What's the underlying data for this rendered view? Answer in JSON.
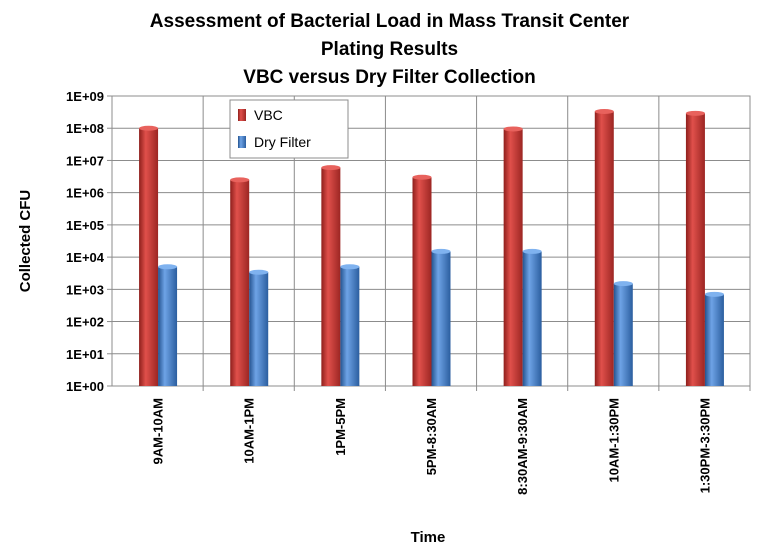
{
  "chart_data": {
    "type": "bar",
    "title_lines": [
      "Assessment of  Bacterial Load in Mass Transit Center",
      "Plating Results",
      "VBC versus Dry Filter Collection"
    ],
    "xlabel": "Time",
    "ylabel": "Collected CFU",
    "yscale": "log",
    "ylim": [
      1,
      1000000000
    ],
    "ytick_labels": [
      "1E+00",
      "1E+01",
      "1E+02",
      "1E+03",
      "1E+04",
      "1E+05",
      "1E+06",
      "1E+07",
      "1E+08",
      "1E+09"
    ],
    "categories": [
      "9AM-10AM",
      "10AM-1PM",
      "1PM-5PM",
      "5PM-8:30AM",
      "8:30AM-9:30AM",
      "10AM-1:30PM",
      "1:30PM-3:30PM"
    ],
    "series": [
      {
        "name": "VBC",
        "color": "#c0312e",
        "values": [
          100000000,
          2500000,
          6000000,
          3000000,
          95000000,
          330000000,
          290000000
        ]
      },
      {
        "name": "Dry Filter",
        "color": "#3f7cc8",
        "values": [
          5000,
          3400,
          5000,
          15000,
          15000,
          1500,
          700
        ]
      }
    ],
    "grid": true,
    "legend_position": "top-left"
  }
}
